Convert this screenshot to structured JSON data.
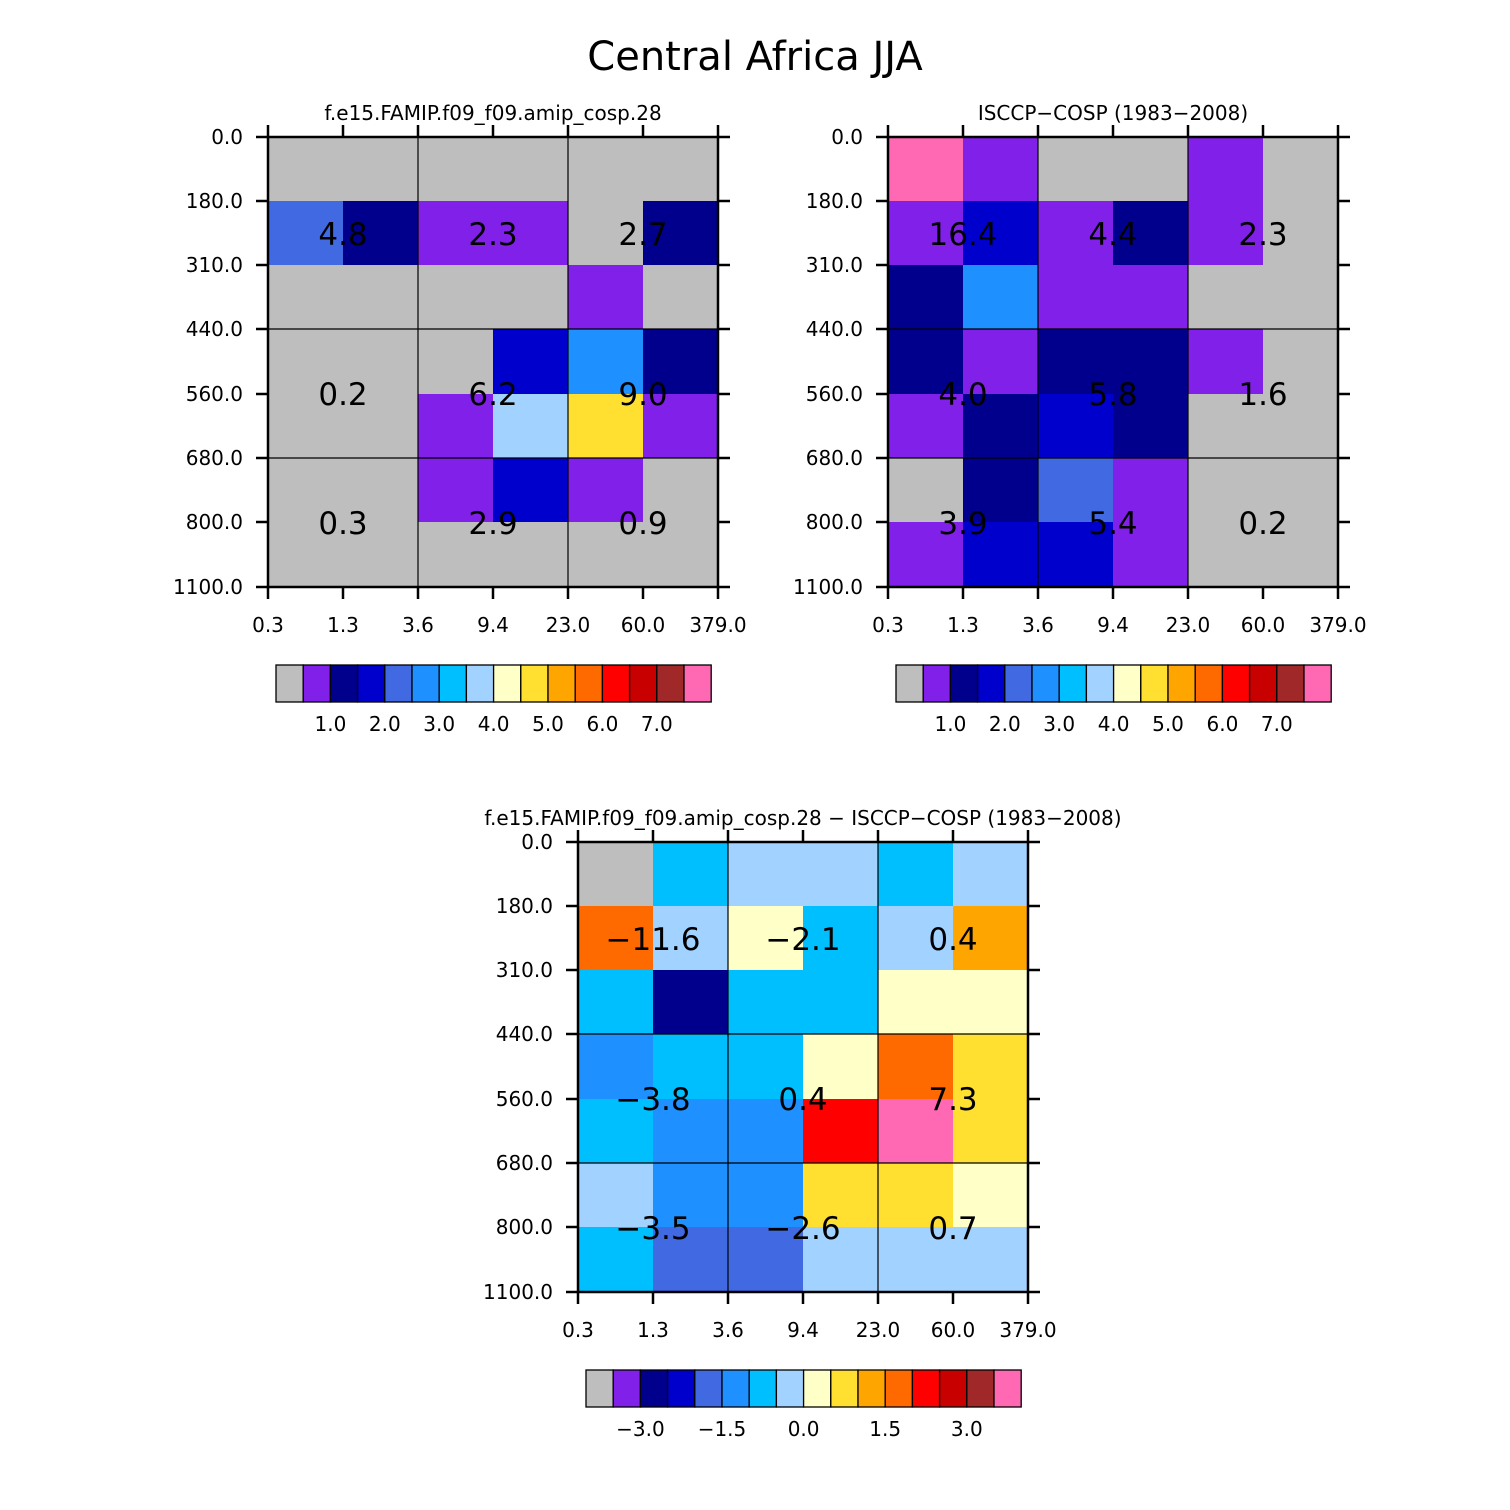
{
  "figure_title": "Central Africa JJA",
  "chart_data": [
    {
      "type": "heatmap",
      "title": "f.e15.FAMIP.f09_f09.amip_cosp.28",
      "x_ticks": [
        "0.3",
        "1.3",
        "3.6",
        "9.4",
        "23.0",
        "60.0",
        "379.0"
      ],
      "y_ticks": [
        "0.0",
        "180.0",
        "310.0",
        "440.0",
        "560.0",
        "680.0",
        "800.0",
        "1100.0"
      ],
      "cells": [
        [
          0,
          0,
          0,
          0,
          0,
          0
        ],
        [
          5,
          3,
          1,
          1,
          0,
          3
        ],
        [
          0,
          0,
          0,
          0,
          1,
          0
        ],
        [
          0,
          0,
          0,
          4,
          6,
          3
        ],
        [
          0,
          0,
          1,
          8,
          10,
          1
        ],
        [
          0,
          0,
          1,
          4,
          1,
          0
        ],
        [
          0,
          0,
          0,
          0,
          0,
          0
        ]
      ],
      "group_values": [
        [
          "4.8",
          "2.3",
          "2.7"
        ],
        [
          "0.2",
          "6.2",
          "9.0"
        ],
        [
          "0.3",
          "2.9",
          "0.9"
        ]
      ],
      "colorbar_labels": [
        "1.0",
        "2.0",
        "3.0",
        "4.0",
        "5.0",
        "6.0",
        "7.0"
      ]
    },
    {
      "type": "heatmap",
      "title": "ISCCP−COSP (1983−2008)",
      "x_ticks": [
        "0.3",
        "1.3",
        "3.6",
        "9.4",
        "23.0",
        "60.0",
        "379.0"
      ],
      "y_ticks": [
        "0.0",
        "180.0",
        "310.0",
        "440.0",
        "560.0",
        "680.0",
        "800.0",
        "1100.0"
      ],
      "cells": [
        [
          16,
          1,
          0,
          0,
          1,
          0
        ],
        [
          1,
          4,
          1,
          3,
          1,
          0
        ],
        [
          3,
          6,
          1,
          1,
          0,
          0
        ],
        [
          3,
          1,
          3,
          3,
          1,
          0
        ],
        [
          1,
          3,
          4,
          3,
          0,
          0
        ],
        [
          0,
          3,
          5,
          1,
          0,
          0
        ],
        [
          1,
          4,
          4,
          1,
          0,
          0
        ]
      ],
      "group_values": [
        [
          "16.4",
          "4.4",
          "2.3"
        ],
        [
          "4.0",
          "5.8",
          "1.6"
        ],
        [
          "3.9",
          "5.4",
          "0.2"
        ]
      ],
      "colorbar_labels": [
        "1.0",
        "2.0",
        "3.0",
        "4.0",
        "5.0",
        "6.0",
        "7.0"
      ]
    },
    {
      "type": "heatmap",
      "title": "f.e15.FAMIP.f09_f09.amip_cosp.28 − ISCCP−COSP (1983−2008)",
      "x_ticks": [
        "0.3",
        "1.3",
        "3.6",
        "9.4",
        "23.0",
        "60.0",
        "379.0"
      ],
      "y_ticks": [
        "0.0",
        "180.0",
        "310.0",
        "440.0",
        "560.0",
        "680.0",
        "800.0",
        "1100.0"
      ],
      "cells": [
        [
          0,
          7,
          8,
          8,
          7,
          8
        ],
        [
          12,
          8,
          9,
          7,
          8,
          11
        ],
        [
          7,
          3,
          7,
          7,
          9,
          9
        ],
        [
          6,
          7,
          7,
          9,
          12,
          10
        ],
        [
          7,
          6,
          6,
          13,
          16,
          10
        ],
        [
          8,
          6,
          6,
          10,
          10,
          9
        ],
        [
          7,
          5,
          5,
          8,
          8,
          8
        ]
      ],
      "group_values": [
        [
          "−11.6",
          "−2.1",
          "0.4"
        ],
        [
          "−3.8",
          "0.4",
          "7.3"
        ],
        [
          "−3.5",
          "−2.6",
          "0.7"
        ]
      ],
      "colorbar_labels": [
        "−3.0",
        "−1.5",
        "0.0",
        "1.5",
        "3.0"
      ]
    }
  ],
  "colorbar_colors": [
    "#bebebe",
    "#8020e8",
    "#00008c",
    "#0000cc",
    "#4169e1",
    "#1e90ff",
    "#00bfff",
    "#a2d2ff",
    "#ffffc8",
    "#ffdf30",
    "#ffa500",
    "#ff6a00",
    "#ff0000",
    "#c80000",
    "#a02828",
    "#ff69b4"
  ],
  "cell_colors": {
    "0": "#bebebe",
    "1": "#8020e8",
    "3": "#00008c",
    "4": "#0000cc",
    "5": "#4169e1",
    "6": "#1e90ff",
    "7": "#00bfff",
    "8": "#a2d2ff",
    "9": "#ffffc8",
    "10": "#ffdf30",
    "11": "#ffa500",
    "12": "#ff6a00",
    "13": "#ff0000",
    "16": "#ff69b4"
  }
}
